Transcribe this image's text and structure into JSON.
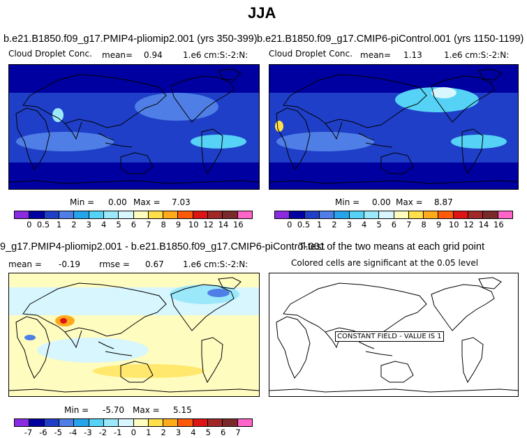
{
  "figure_title": "JJA",
  "panels": {
    "p1": {
      "title": "b.e21.B1850.f09_g17.PMIP4-pliomip2.001 (yrs 350-399)",
      "left": "Cloud Droplet Conc.",
      "mean_label": "mean=",
      "mean": "0.94",
      "units": "1.e6 cm:S:-2:N:",
      "min_label": "Min =",
      "min": "0.00",
      "max_label": "Max =",
      "max": "7.03"
    },
    "p2": {
      "title": "b.e21.B1850.f09_g17.CMIP6-piControl.001 (yrs 1150-1199)",
      "left": "Cloud Droplet Conc.",
      "mean_label": "mean=",
      "mean": "1.13",
      "units": "1.e6 cm:S:-2:N:",
      "min_label": "Min =",
      "min": "0.00",
      "max_label": "Max =",
      "max": "8.87"
    },
    "p3": {
      "title": "9_g17.PMIP4-pliomip2.001 - b.e21.B1850.f09_g17.CMIP6-piControl.001",
      "mean_label": "mean =",
      "mean": "-0.19",
      "rmse_label": "rmse =",
      "rmse": "0.67",
      "units": "1.e6 cm:S:-2:N:",
      "min_label": "Min =",
      "min": "-5.70",
      "max_label": "Max =",
      "max": "5.15"
    },
    "p4": {
      "title": "T-test of the two means at each grid point",
      "subtitle": "Colored cells are significant at the 0.05 level",
      "box": "CONSTANT FIELD - VALUE IS 1"
    }
  },
  "colorbars": {
    "abs": {
      "colors": [
        "#8a2be2",
        "#0000a0",
        "#1f3fc8",
        "#4f7fe6",
        "#25a4ec",
        "#55d2f5",
        "#9be8fb",
        "#d8f6fd",
        "#fffcc0",
        "#ffe04a",
        "#ffaa1a",
        "#ff5a0a",
        "#dc1414",
        "#a02828",
        "#7a2a2a",
        "#ff64c8"
      ],
      "labels": [
        "0",
        "0.5",
        "1",
        "2",
        "3",
        "4",
        "5",
        "6",
        "7",
        "8",
        "9",
        "10",
        "12",
        "14",
        "16"
      ]
    },
    "diff": {
      "colors": [
        "#8a2be2",
        "#0000a0",
        "#1f3fc8",
        "#4f7fe6",
        "#25a4ec",
        "#55d2f5",
        "#9be8fb",
        "#d8f6fd",
        "#fffcc0",
        "#ffe04a",
        "#ffaa1a",
        "#ff5a0a",
        "#dc1414",
        "#a02828",
        "#7a2a2a",
        "#ff64c8"
      ],
      "labels": [
        "-7",
        "-6",
        "-5",
        "-4",
        "-3",
        "-2",
        "-1",
        "0",
        "1",
        "2",
        "3",
        "4",
        "5",
        "6",
        "7"
      ]
    }
  },
  "chart_data": [
    {
      "type": "heatmap",
      "title": "b.e21.B1850.f09_g17.PMIP4-pliomip2.001 (yrs 350-399)",
      "variable": "Cloud Droplet Conc.",
      "units": "1.e6 cm:S:-2:N:",
      "mean": 0.94,
      "min": 0.0,
      "max": 7.03,
      "levels": [
        0,
        0.5,
        1,
        2,
        3,
        4,
        5,
        6,
        7,
        8,
        9,
        10,
        12,
        14,
        16
      ]
    },
    {
      "type": "heatmap",
      "title": "b.e21.B1850.f09_g17.CMIP6-piControl.001 (yrs 1150-1199)",
      "variable": "Cloud Droplet Conc.",
      "units": "1.e6 cm:S:-2:N:",
      "mean": 1.13,
      "min": 0.0,
      "max": 8.87,
      "levels": [
        0,
        0.5,
        1,
        2,
        3,
        4,
        5,
        6,
        7,
        8,
        9,
        10,
        12,
        14,
        16
      ]
    },
    {
      "type": "heatmap",
      "title": "9_g17.PMIP4-pliomip2.001 - b.e21.B1850.f09_g17.CMIP6-piControl.001",
      "units": "1.e6 cm:S:-2:N:",
      "mean": -0.19,
      "rmse": 0.67,
      "min": -5.7,
      "max": 5.15,
      "levels": [
        -7,
        -6,
        -5,
        -4,
        -3,
        -2,
        -1,
        0,
        1,
        2,
        3,
        4,
        5,
        6,
        7
      ]
    },
    {
      "type": "heatmap",
      "title": "T-test of the two means at each grid point",
      "subtitle": "Colored cells are significant at the 0.05 level",
      "annotation": "CONSTANT FIELD - VALUE IS 1"
    }
  ]
}
